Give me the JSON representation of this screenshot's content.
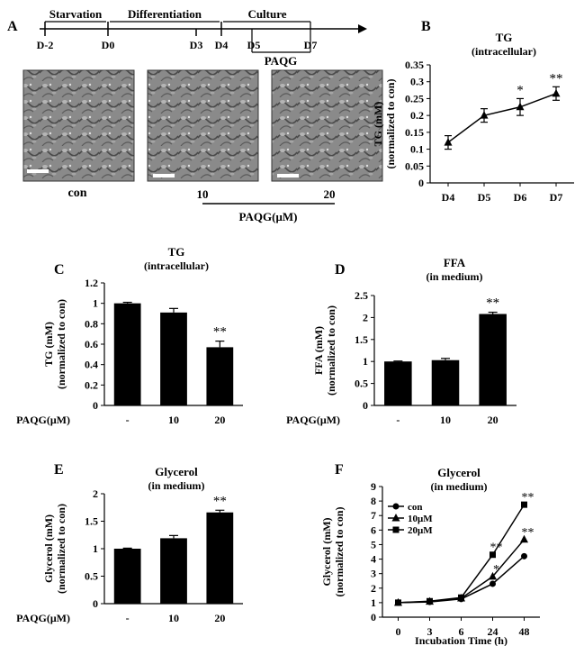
{
  "panel_letters": [
    "A",
    "B",
    "C",
    "D",
    "E",
    "F"
  ],
  "timeline": {
    "phases": [
      "Starvation",
      "Differentiation",
      "Culture"
    ],
    "days": [
      "D-2",
      "D0",
      "D3",
      "D4",
      "D5",
      "D7"
    ],
    "treatment": "PAQG"
  },
  "micrographs": {
    "left_label": "con",
    "dose_low": "10",
    "dose_high": "20",
    "axis_label": "PAQG(μM)"
  },
  "chart_data": [
    {
      "panel": "B",
      "type": "line",
      "title": "TG",
      "subtitle": "(intracellular)",
      "xlabel": "",
      "ylabel": "TG (mM)",
      "ylabel2": "(normalized to con)",
      "categories": [
        "D4",
        "D5",
        "D6",
        "D7"
      ],
      "series": [
        {
          "name": "",
          "values": [
            0.12,
            0.2,
            0.225,
            0.265
          ],
          "errors": [
            0.02,
            0.02,
            0.025,
            0.02
          ]
        }
      ],
      "annotations": [
        "",
        "",
        "*",
        "**"
      ],
      "ylim": [
        0,
        0.35
      ],
      "yticks": [
        "0",
        "0.05",
        "0.1",
        "0.15",
        "0.2",
        "0.25",
        "0.3",
        "0.35"
      ],
      "grid": false,
      "color": "#000000"
    },
    {
      "panel": "C",
      "type": "bar",
      "title": "TG",
      "subtitle": "(intracellular)",
      "ylabel": "TG (mM)",
      "ylabel2": "(normalized to con)",
      "xlabel": "PAQG(μM)",
      "categories": [
        "-",
        "10",
        "20"
      ],
      "values": [
        1.0,
        0.91,
        0.57
      ],
      "errors": [
        0.01,
        0.04,
        0.06
      ],
      "annotations": [
        "",
        "",
        "**"
      ],
      "ylim": [
        0,
        1.2
      ],
      "yticks": [
        "0",
        "0.2",
        "0.4",
        "0.6",
        "0.8",
        "1",
        "1.2"
      ],
      "color": "#000000"
    },
    {
      "panel": "D",
      "type": "bar",
      "title": "FFA",
      "subtitle": "(in medium)",
      "ylabel": "FFA (mM)",
      "ylabel2": "(normalized to con)",
      "xlabel": "PAQG(μM)",
      "categories": [
        "-",
        "10",
        "20"
      ],
      "values": [
        1.0,
        1.03,
        2.08
      ],
      "errors": [
        0.01,
        0.04,
        0.04
      ],
      "annotations": [
        "",
        "",
        "**"
      ],
      "ylim": [
        0,
        2.5
      ],
      "yticks": [
        "0",
        "0.5",
        "1",
        "1.5",
        "2",
        "2.5"
      ],
      "color": "#000000"
    },
    {
      "panel": "E",
      "type": "bar",
      "title": "Glycerol",
      "subtitle": "(in medium)",
      "ylabel": "Glycerol (mM)",
      "ylabel2": "(normalized to con)",
      "xlabel": "PAQG(μM)",
      "categories": [
        "-",
        "10",
        "20"
      ],
      "values": [
        1.0,
        1.19,
        1.66
      ],
      "errors": [
        0.01,
        0.05,
        0.04
      ],
      "annotations": [
        "",
        "",
        "**"
      ],
      "ylim": [
        0,
        2
      ],
      "yticks": [
        "0",
        "0.5",
        "1",
        "1.5",
        "2"
      ],
      "color": "#000000"
    },
    {
      "panel": "F",
      "type": "line",
      "title": "Glycerol",
      "subtitle": "(in medium)",
      "ylabel": "Glycerol (mM)",
      "ylabel2": "(normalized to con)",
      "xlabel": "Incubation Time (h)",
      "categories": [
        "0",
        "3",
        "6",
        "24",
        "48"
      ],
      "series": [
        {
          "name": "con",
          "marker": "circle",
          "values": [
            1.0,
            1.05,
            1.25,
            2.3,
            4.2
          ]
        },
        {
          "name": "10μM",
          "marker": "triangle",
          "values": [
            1.0,
            1.08,
            1.3,
            2.8,
            5.35
          ]
        },
        {
          "name": "20μM",
          "marker": "square",
          "values": [
            1.0,
            1.1,
            1.35,
            4.3,
            7.75
          ]
        }
      ],
      "annotations": [
        {
          "category": "24",
          "text": "**",
          "value": 4.3
        },
        {
          "category": "24",
          "text": "*",
          "value": 2.8
        },
        {
          "category": "48",
          "text": "**",
          "value": 7.75
        },
        {
          "category": "48",
          "text": "**",
          "value": 5.35
        }
      ],
      "ylim": [
        0,
        9
      ],
      "yticks": [
        "0",
        "1",
        "2",
        "3",
        "4",
        "5",
        "6",
        "7",
        "8",
        "9"
      ],
      "legend": "top-left",
      "grid": false,
      "color": "#000000"
    }
  ]
}
